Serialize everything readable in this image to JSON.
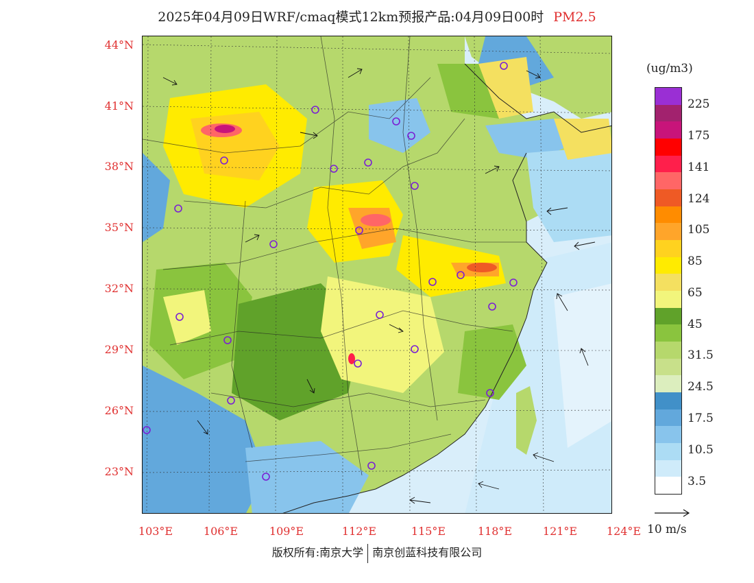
{
  "header": {
    "title": "2025年04月09日WRF/cmaq模式12km预报产品:04月09日00时",
    "variable": "PM2.5"
  },
  "map": {
    "latitude_ticks": [
      "44°N",
      "41°N",
      "38°N",
      "35°N",
      "32°N",
      "29°N",
      "26°N",
      "23°N"
    ],
    "longitude_ticks": [
      "103°E",
      "106°E",
      "109°E",
      "112°E",
      "115°E",
      "118°E",
      "121°E",
      "124°E"
    ],
    "colors": {
      "sea": "#d9eefa",
      "land_base": "#b6d86c"
    }
  },
  "colorbar": {
    "unit": "(ug/m3)",
    "labels": [
      "225",
      "175",
      "141",
      "124",
      "105",
      "85",
      "65",
      "45",
      "31.5",
      "24.5",
      "17.5",
      "10.5",
      "3.5"
    ],
    "colors": [
      "#9a2fd4",
      "#a2226e",
      "#c8147a",
      "#ff0000",
      "#ff1f4b",
      "#ff6666",
      "#ef5a25",
      "#ff8c00",
      "#ffa52a",
      "#ffd21f",
      "#ffeb00",
      "#f4e060",
      "#f2f57c",
      "#60a22a",
      "#8ac43e",
      "#b6d86c",
      "#c8e08a",
      "#dceebe",
      "#4190c8",
      "#62a8dc",
      "#88c4ec",
      "#acdcf4",
      "#cfebfa",
      "#ffffff"
    ]
  },
  "wind_reference": {
    "label": "10 m/s"
  },
  "footer": {
    "copyright_left": "版权所有:南京大学",
    "copyright_right": "南京创蓝科技有限公司"
  }
}
